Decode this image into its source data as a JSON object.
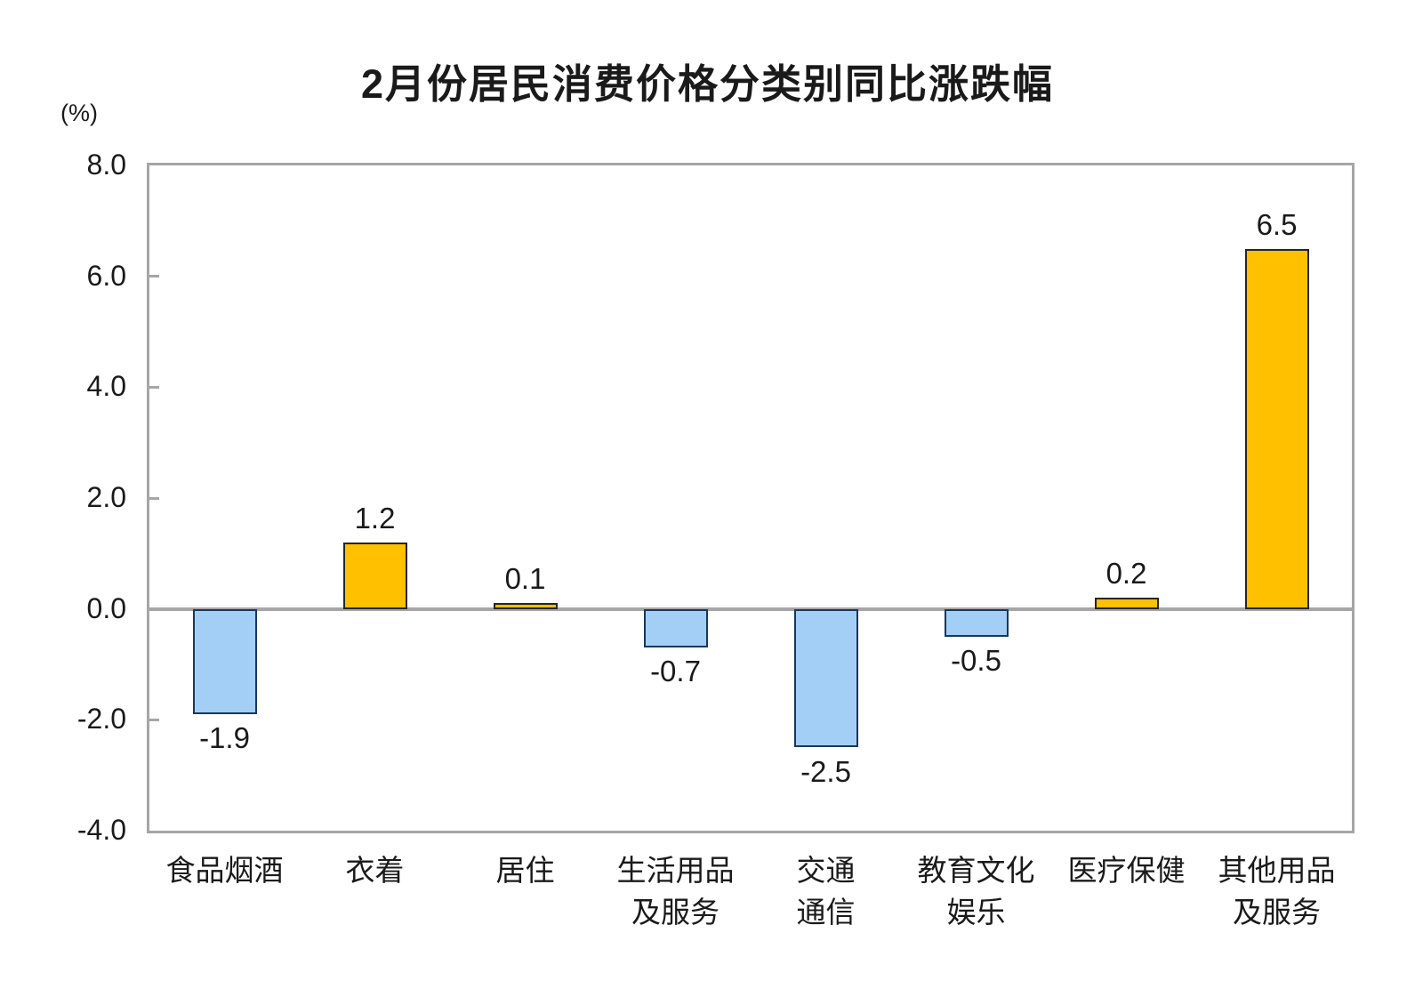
{
  "chart_data": {
    "type": "bar",
    "title": "2月份居民消费价格分类别同比涨跌幅",
    "unit_label": "(%)",
    "categories": [
      "食品烟酒",
      "衣着",
      "居住",
      "生活用品及服务",
      "交通通信",
      "教育文化娱乐",
      "医疗保健",
      "其他用品及服务"
    ],
    "category_lines": [
      [
        "食品烟酒"
      ],
      [
        "衣着"
      ],
      [
        "居住"
      ],
      [
        "生活用品",
        "及服务"
      ],
      [
        "交通",
        "通信"
      ],
      [
        "教育文化",
        "娱乐"
      ],
      [
        "医疗保健"
      ],
      [
        "其他用品",
        "及服务"
      ]
    ],
    "values": [
      -1.9,
      1.2,
      0.1,
      -0.7,
      -2.5,
      -0.5,
      0.2,
      6.5
    ],
    "value_labels": [
      "-1.9",
      "1.2",
      "0.1",
      "-0.7",
      "-2.5",
      "-0.5",
      "0.2",
      "6.5"
    ],
    "ylabel": "(%)",
    "xlabel": "",
    "ylim": [
      -4.0,
      8.0
    ],
    "ytick_values": [
      8.0,
      6.0,
      4.0,
      2.0,
      0.0,
      -2.0,
      -4.0
    ],
    "ytick_labels": [
      "8.0",
      "6.0",
      "4.0",
      "2.0",
      "0.0",
      "-2.0",
      "-4.0"
    ],
    "grid": false,
    "legend": "none",
    "colors": {
      "positive_fill": "#FFC000",
      "positive_border": "#262626",
      "negative_fill": "#A3CFF7",
      "negative_border": "#17375E",
      "frame": "#A6A6A6",
      "zero_line": "#A6A6A6",
      "text": "#1A1A1A"
    }
  }
}
